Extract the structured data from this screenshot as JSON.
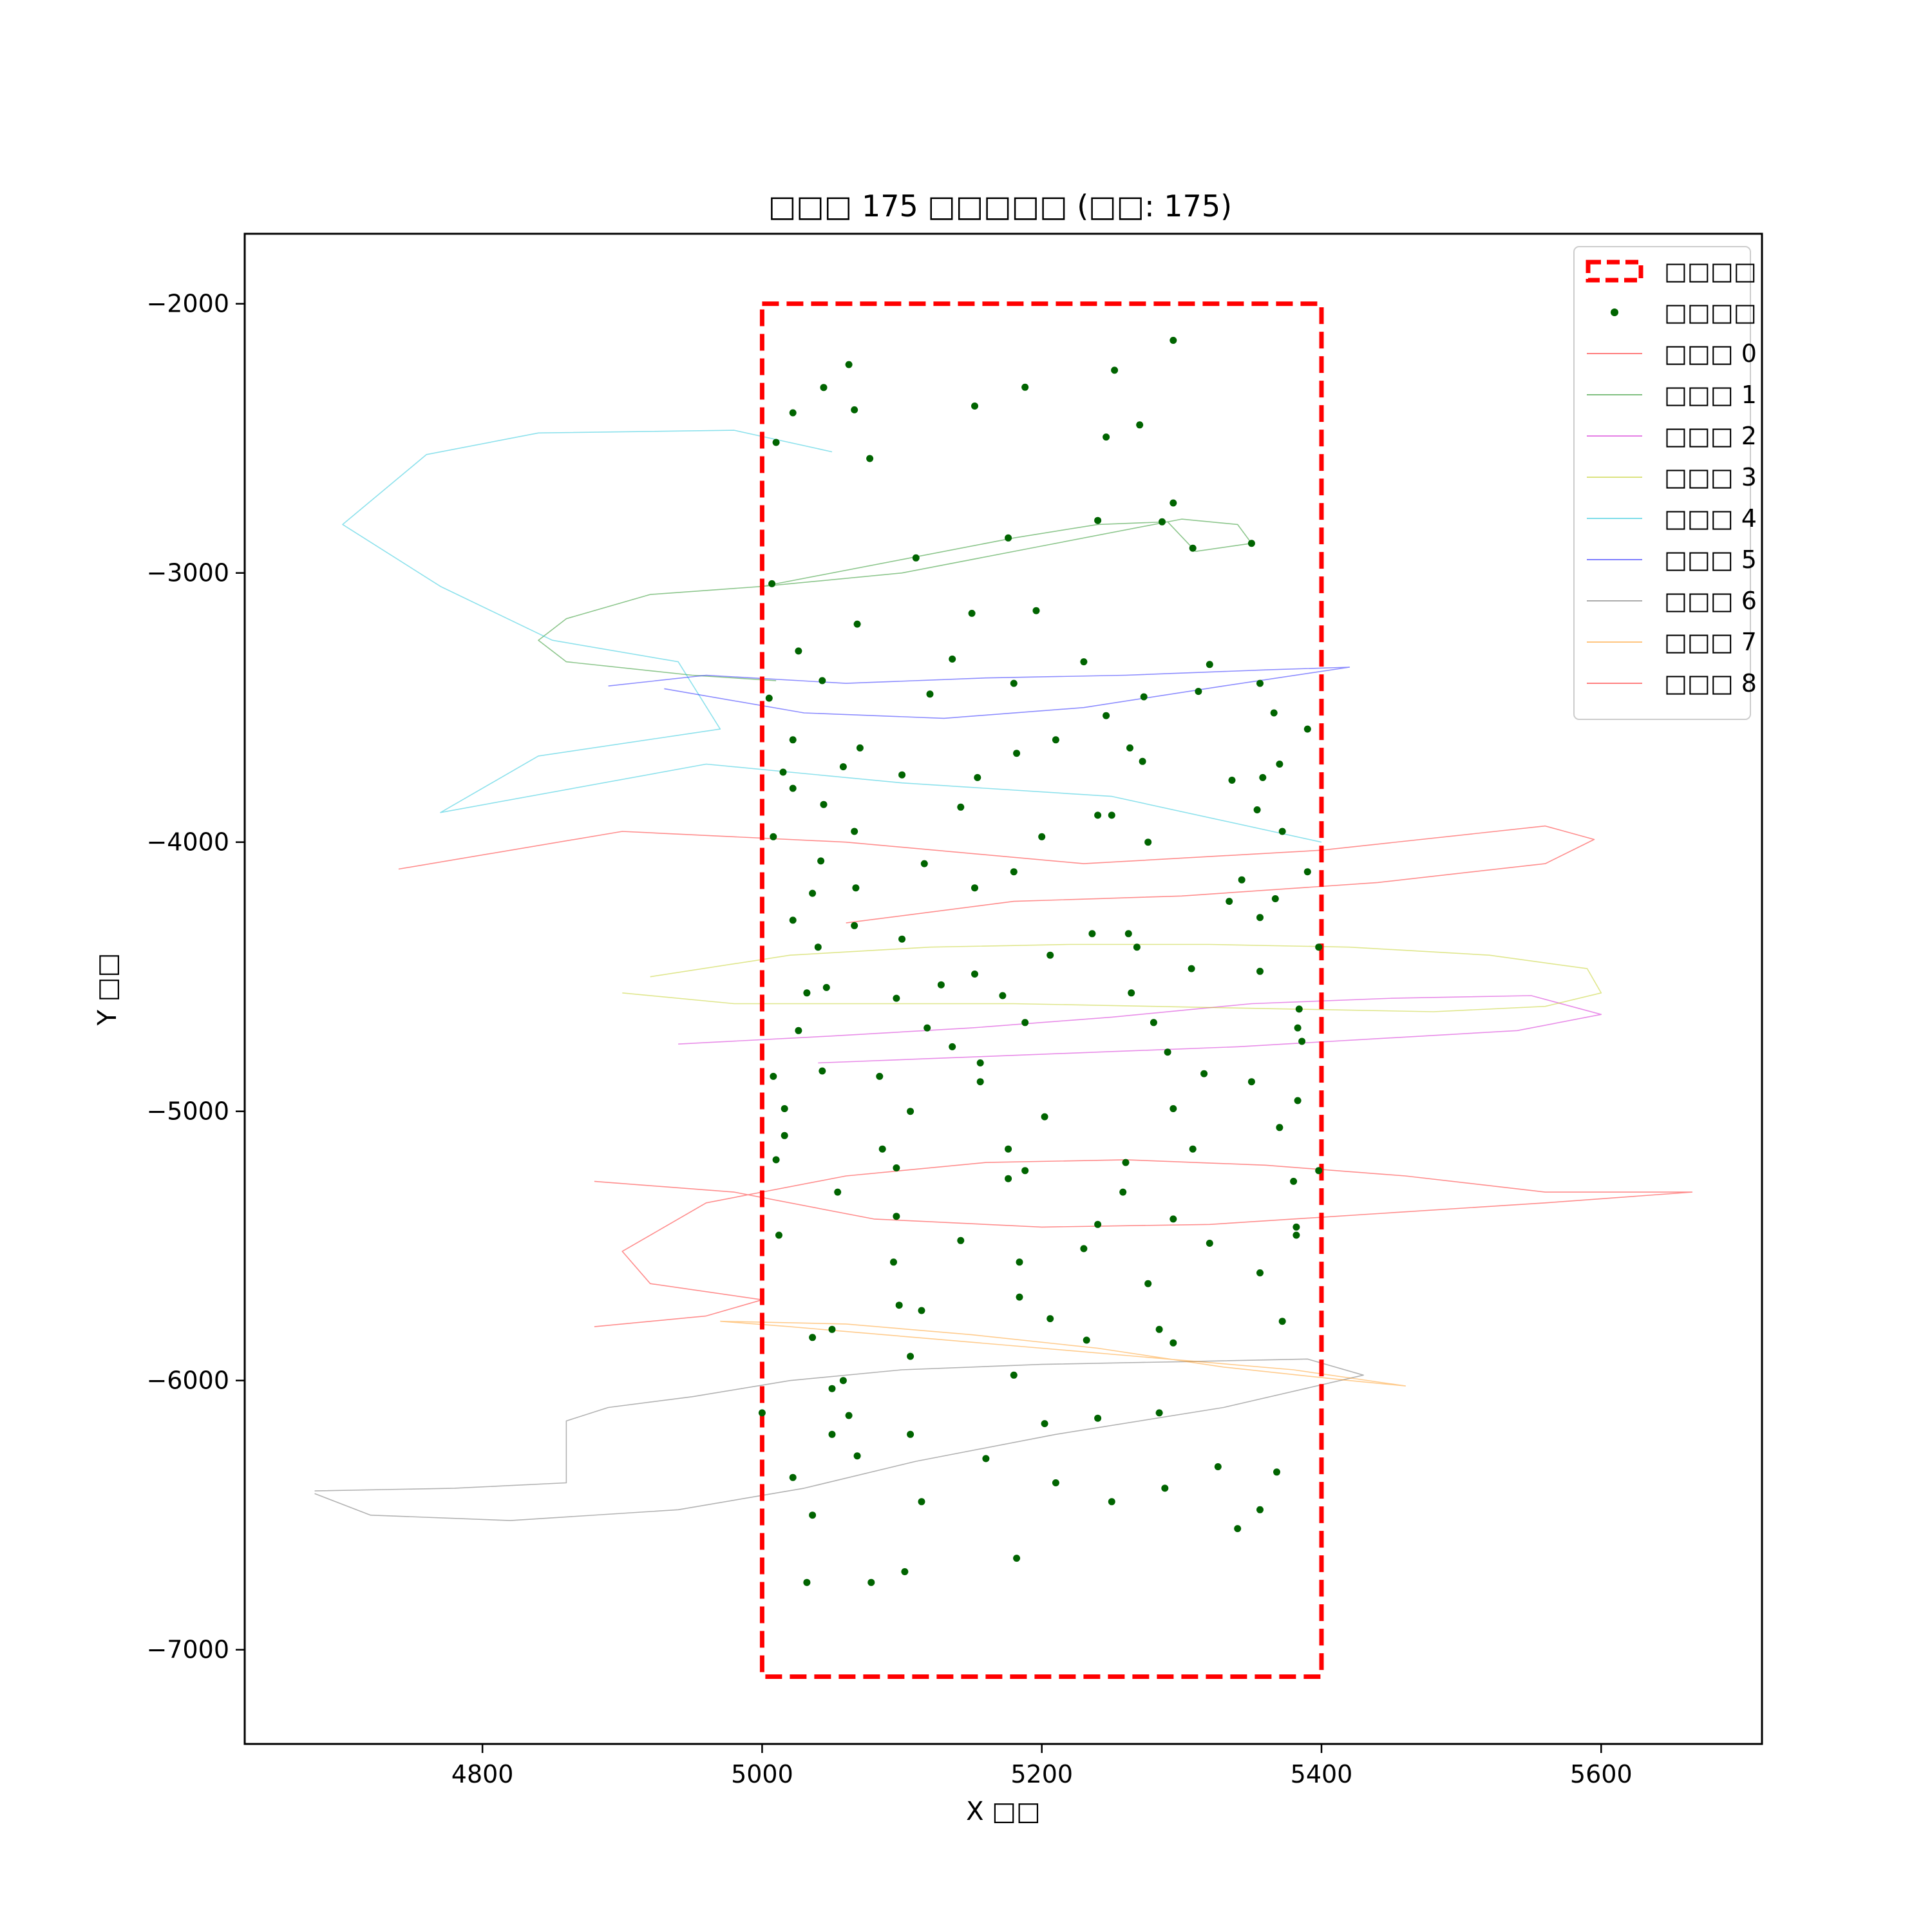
{
  "chart_data": {
    "type": "line",
    "title": "□□□ 175 □□□□□ (□□: 175)",
    "xlabel": "X □□",
    "ylabel": "Y □□",
    "xlim": [
      4630,
      5715
    ],
    "ylim": [
      -7350,
      -1740
    ],
    "xticks": [
      4800,
      5000,
      5200,
      5400,
      5600
    ],
    "yticks": [
      -2000,
      -3000,
      -4000,
      -5000,
      -6000,
      -7000
    ],
    "grid": false,
    "legend_position": "upper right",
    "region": {
      "name": "□□□□",
      "x": [
        5000,
        5400
      ],
      "y": [
        -7100,
        -2000
      ],
      "color": "#ff0000",
      "style": "dashed"
    },
    "points_legend": {
      "name": "□□□□",
      "color": "#006400"
    },
    "series": [
      {
        "name": "□□□ 0",
        "color": "#ff0000",
        "x": [
          4740,
          4900,
          5060,
          5230,
          5400,
          5560,
          5595,
          5560,
          5440,
          5300,
          5180,
          5060
        ],
        "y": [
          -4100,
          -3960,
          -4000,
          -4080,
          -4030,
          -3940,
          -3990,
          -4080,
          -4150,
          -4200,
          -4220,
          -4300
        ]
      },
      {
        "name": "□□□ 1",
        "color": "#008000",
        "x": [
          5000,
          5100,
          5200,
          5300,
          5340,
          5350,
          5310,
          5290,
          5240,
          5180,
          5100,
          5000,
          4920,
          4860,
          4840,
          4860,
          4950,
          5010
        ],
        "y": [
          -3050,
          -3000,
          -2900,
          -2800,
          -2820,
          -2890,
          -2920,
          -2810,
          -2820,
          -2870,
          -2950,
          -3050,
          -3080,
          -3170,
          -3250,
          -3330,
          -3380,
          -3400
        ]
      },
      {
        "name": "□□□ 2",
        "color": "#cc00cc",
        "x": [
          4940,
          5050,
          5150,
          5250,
          5350,
          5450,
          5550,
          5600,
          5540,
          5440,
          5340,
          5240,
          5140,
          5040
        ],
        "y": [
          -4750,
          -4720,
          -4690,
          -4650,
          -4600,
          -4580,
          -4570,
          -4640,
          -4700,
          -4730,
          -4760,
          -4780,
          -4800,
          -4820
        ]
      },
      {
        "name": "□□□ 3",
        "color": "#b8c800",
        "x": [
          4920,
          5020,
          5120,
          5220,
          5320,
          5420,
          5520,
          5590,
          5600,
          5560,
          5480,
          5380,
          5280,
          5180,
          5080,
          4980,
          4900
        ],
        "y": [
          -4500,
          -4420,
          -4390,
          -4380,
          -4380,
          -4390,
          -4420,
          -4470,
          -4560,
          -4610,
          -4630,
          -4620,
          -4610,
          -4600,
          -4600,
          -4600,
          -4560
        ]
      },
      {
        "name": "□□□ 4",
        "color": "#00bcd4",
        "x": [
          5050,
          4980,
          4840,
          4760,
          4700,
          4770,
          4850,
          4940,
          4970,
          4840,
          4770,
          4960,
          5100,
          5250,
          5400
        ],
        "y": [
          -2550,
          -2470,
          -2480,
          -2560,
          -2820,
          -3050,
          -3250,
          -3330,
          -3580,
          -3680,
          -3890,
          -3710,
          -3780,
          -3830,
          -4000
        ]
      },
      {
        "name": "□□□ 5",
        "color": "#0000ff",
        "x": [
          4890,
          4960,
          5060,
          5160,
          5260,
          5360,
          5420,
          5330,
          5230,
          5130,
          5030,
          4930
        ],
        "y": [
          -3420,
          -3380,
          -3410,
          -3390,
          -3380,
          -3360,
          -3350,
          -3420,
          -3500,
          -3540,
          -3520,
          -3430
        ]
      },
      {
        "name": "□□□ 6",
        "color": "#555555",
        "x": [
          4680,
          4780,
          4860,
          4860,
          4890,
          4950,
          5020,
          5100,
          5200,
          5300,
          5390,
          5430,
          5330,
          5210,
          5110,
          5030,
          4940,
          4820,
          4720,
          4680
        ],
        "y": [
          -6410,
          -6400,
          -6380,
          -6150,
          -6100,
          -6060,
          -6000,
          -5960,
          -5940,
          -5930,
          -5920,
          -5980,
          -6100,
          -6200,
          -6300,
          -6400,
          -6480,
          -6520,
          -6500,
          -6420
        ]
      },
      {
        "name": "□□□ 7",
        "color": "#ff8c00",
        "x": [
          4970,
          5060,
          5150,
          5240,
          5330,
          5420,
          5460,
          5380,
          5290,
          5200,
          5110,
          5020,
          4970
        ],
        "y": [
          -5780,
          -5790,
          -5830,
          -5880,
          -5950,
          -6000,
          -6020,
          -5960,
          -5920,
          -5880,
          -5840,
          -5800,
          -5780
        ]
      },
      {
        "name": "□□□ 8",
        "color": "#ff0000",
        "x": [
          4880,
          4960,
          5000,
          4920,
          4900,
          4960,
          5060,
          5160,
          5260,
          5360,
          5460,
          5560,
          5665,
          5560,
          5440,
          5320,
          5200,
          5080,
          4980,
          4880
        ],
        "y": [
          -5800,
          -5760,
          -5700,
          -5640,
          -5520,
          -5340,
          -5240,
          -5190,
          -5180,
          -5200,
          -5240,
          -5300,
          -5300,
          -5340,
          -5380,
          -5420,
          -5430,
          -5400,
          -5300,
          -5260
        ]
      }
    ],
    "points": [
      {
        "x": 5062,
        "y": -2226
      },
      {
        "x": 5044,
        "y": -2311
      },
      {
        "x": 5022,
        "y": -2405
      },
      {
        "x": 5066,
        "y": -2394
      },
      {
        "x": 5152,
        "y": -2380
      },
      {
        "x": 5188,
        "y": -2310
      },
      {
        "x": 5252,
        "y": -2247
      },
      {
        "x": 5294,
        "y": -2136
      },
      {
        "x": 5270,
        "y": -2450
      },
      {
        "x": 5246,
        "y": -2495
      },
      {
        "x": 5010,
        "y": -2515
      },
      {
        "x": 5077,
        "y": -2575
      },
      {
        "x": 5294,
        "y": -2740
      },
      {
        "x": 5240,
        "y": -2805
      },
      {
        "x": 5286,
        "y": -2810
      },
      {
        "x": 5176,
        "y": -2870
      },
      {
        "x": 5350,
        "y": -2890
      },
      {
        "x": 5308,
        "y": -2908
      },
      {
        "x": 5110,
        "y": -2944
      },
      {
        "x": 5007,
        "y": -3040
      },
      {
        "x": 5196,
        "y": -3140
      },
      {
        "x": 5150,
        "y": -3150
      },
      {
        "x": 5068,
        "y": -3190
      },
      {
        "x": 5026,
        "y": -3290
      },
      {
        "x": 5136,
        "y": -3320
      },
      {
        "x": 5230,
        "y": -3330
      },
      {
        "x": 5320,
        "y": -3340
      },
      {
        "x": 5043,
        "y": -3400
      },
      {
        "x": 5180,
        "y": -3410
      },
      {
        "x": 5356,
        "y": -3410
      },
      {
        "x": 5120,
        "y": -3450
      },
      {
        "x": 5312,
        "y": -3440
      },
      {
        "x": 5273,
        "y": -3460
      },
      {
        "x": 5005,
        "y": -3465
      },
      {
        "x": 5246,
        "y": -3530
      },
      {
        "x": 5366,
        "y": -3520
      },
      {
        "x": 5390,
        "y": -3580
      },
      {
        "x": 5022,
        "y": -3620
      },
      {
        "x": 5210,
        "y": -3620
      },
      {
        "x": 5070,
        "y": -3650
      },
      {
        "x": 5263,
        "y": -3650
      },
      {
        "x": 5182,
        "y": -3670
      },
      {
        "x": 5272,
        "y": -3700
      },
      {
        "x": 5370,
        "y": -3710
      },
      {
        "x": 5058,
        "y": -3720
      },
      {
        "x": 5015,
        "y": -3740
      },
      {
        "x": 5100,
        "y": -3750
      },
      {
        "x": 5154,
        "y": -3760
      },
      {
        "x": 5358,
        "y": -3760
      },
      {
        "x": 5336,
        "y": -3770
      },
      {
        "x": 5022,
        "y": -3800
      },
      {
        "x": 5044,
        "y": -3860
      },
      {
        "x": 5142,
        "y": -3870
      },
      {
        "x": 5354,
        "y": -3880
      },
      {
        "x": 5240,
        "y": -3900
      },
      {
        "x": 5250,
        "y": -3900
      },
      {
        "x": 5066,
        "y": -3960
      },
      {
        "x": 5372,
        "y": -3960
      },
      {
        "x": 5008,
        "y": -3980
      },
      {
        "x": 5200,
        "y": -3980
      },
      {
        "x": 5276,
        "y": -4000
      },
      {
        "x": 5042,
        "y": -4070
      },
      {
        "x": 5116,
        "y": -4080
      },
      {
        "x": 5180,
        "y": -4110
      },
      {
        "x": 5390,
        "y": -4110
      },
      {
        "x": 5343,
        "y": -4140
      },
      {
        "x": 5067,
        "y": -4170
      },
      {
        "x": 5036,
        "y": -4190
      },
      {
        "x": 5152,
        "y": -4170
      },
      {
        "x": 5367,
        "y": -4210
      },
      {
        "x": 5334,
        "y": -4220
      },
      {
        "x": 5022,
        "y": -4290
      },
      {
        "x": 5066,
        "y": -4310
      },
      {
        "x": 5356,
        "y": -4280
      },
      {
        "x": 5236,
        "y": -4340
      },
      {
        "x": 5262,
        "y": -4340
      },
      {
        "x": 5100,
        "y": -4360
      },
      {
        "x": 5040,
        "y": -4390
      },
      {
        "x": 5268,
        "y": -4390
      },
      {
        "x": 5398,
        "y": -4390
      },
      {
        "x": 5206,
        "y": -4420
      },
      {
        "x": 5307,
        "y": -4470
      },
      {
        "x": 5152,
        "y": -4490
      },
      {
        "x": 5356,
        "y": -4480
      },
      {
        "x": 5128,
        "y": -4530
      },
      {
        "x": 5046,
        "y": -4540
      },
      {
        "x": 5032,
        "y": -4560
      },
      {
        "x": 5264,
        "y": -4560
      },
      {
        "x": 5172,
        "y": -4570
      },
      {
        "x": 5096,
        "y": -4580
      },
      {
        "x": 5384,
        "y": -4620
      },
      {
        "x": 5188,
        "y": -4670
      },
      {
        "x": 5280,
        "y": -4670
      },
      {
        "x": 5118,
        "y": -4690
      },
      {
        "x": 5026,
        "y": -4700
      },
      {
        "x": 5383,
        "y": -4690
      },
      {
        "x": 5386,
        "y": -4740
      },
      {
        "x": 5136,
        "y": -4760
      },
      {
        "x": 5290,
        "y": -4780
      },
      {
        "x": 5156,
        "y": -4820
      },
      {
        "x": 5043,
        "y": -4850
      },
      {
        "x": 5316,
        "y": -4860
      },
      {
        "x": 5008,
        "y": -4870
      },
      {
        "x": 5084,
        "y": -4870
      },
      {
        "x": 5156,
        "y": -4890
      },
      {
        "x": 5350,
        "y": -4890
      },
      {
        "x": 5383,
        "y": -4960
      },
      {
        "x": 5016,
        "y": -4990
      },
      {
        "x": 5294,
        "y": -4990
      },
      {
        "x": 5106,
        "y": -5000
      },
      {
        "x": 5202,
        "y": -5020
      },
      {
        "x": 5370,
        "y": -5060
      },
      {
        "x": 5016,
        "y": -5090
      },
      {
        "x": 5086,
        "y": -5140
      },
      {
        "x": 5176,
        "y": -5140
      },
      {
        "x": 5308,
        "y": -5140
      },
      {
        "x": 5010,
        "y": -5180
      },
      {
        "x": 5260,
        "y": -5190
      },
      {
        "x": 5096,
        "y": -5210
      },
      {
        "x": 5188,
        "y": -5220
      },
      {
        "x": 5398,
        "y": -5220
      },
      {
        "x": 5176,
        "y": -5250
      },
      {
        "x": 5380,
        "y": -5260
      },
      {
        "x": 5054,
        "y": -5300
      },
      {
        "x": 5258,
        "y": -5300
      },
      {
        "x": 5096,
        "y": -5390
      },
      {
        "x": 5294,
        "y": -5400
      },
      {
        "x": 5240,
        "y": -5420
      },
      {
        "x": 5382,
        "y": -5430
      },
      {
        "x": 5012,
        "y": -5460
      },
      {
        "x": 5382,
        "y": -5460
      },
      {
        "x": 5142,
        "y": -5480
      },
      {
        "x": 5320,
        "y": -5490
      },
      {
        "x": 5230,
        "y": -5510
      },
      {
        "x": 5094,
        "y": -5560
      },
      {
        "x": 5184,
        "y": -5560
      },
      {
        "x": 5356,
        "y": -5600
      },
      {
        "x": 5276,
        "y": -5640
      },
      {
        "x": 5184,
        "y": -5690
      },
      {
        "x": 5098,
        "y": -5720
      },
      {
        "x": 5114,
        "y": -5740
      },
      {
        "x": 5206,
        "y": -5770
      },
      {
        "x": 5372,
        "y": -5780
      },
      {
        "x": 5050,
        "y": -5810
      },
      {
        "x": 5284,
        "y": -5810
      },
      {
        "x": 5036,
        "y": -5840
      },
      {
        "x": 5232,
        "y": -5850
      },
      {
        "x": 5294,
        "y": -5860
      },
      {
        "x": 5106,
        "y": -5910
      },
      {
        "x": 5180,
        "y": -5980
      },
      {
        "x": 5058,
        "y": -6000
      },
      {
        "x": 5050,
        "y": -6030
      },
      {
        "x": 5000,
        "y": -6120
      },
      {
        "x": 5062,
        "y": -6130
      },
      {
        "x": 5284,
        "y": -6120
      },
      {
        "x": 5240,
        "y": -6140
      },
      {
        "x": 5202,
        "y": -6160
      },
      {
        "x": 5050,
        "y": -6200
      },
      {
        "x": 5106,
        "y": -6200
      },
      {
        "x": 5068,
        "y": -6280
      },
      {
        "x": 5160,
        "y": -6290
      },
      {
        "x": 5326,
        "y": -6320
      },
      {
        "x": 5368,
        "y": -6340
      },
      {
        "x": 5022,
        "y": -6360
      },
      {
        "x": 5210,
        "y": -6380
      },
      {
        "x": 5288,
        "y": -6400
      },
      {
        "x": 5250,
        "y": -6450
      },
      {
        "x": 5114,
        "y": -6450
      },
      {
        "x": 5036,
        "y": -6500
      },
      {
        "x": 5356,
        "y": -6480
      },
      {
        "x": 5340,
        "y": -6550
      },
      {
        "x": 5182,
        "y": -6660
      },
      {
        "x": 5102,
        "y": -6710
      },
      {
        "x": 5032,
        "y": -6750
      },
      {
        "x": 5078,
        "y": -6750
      }
    ]
  }
}
